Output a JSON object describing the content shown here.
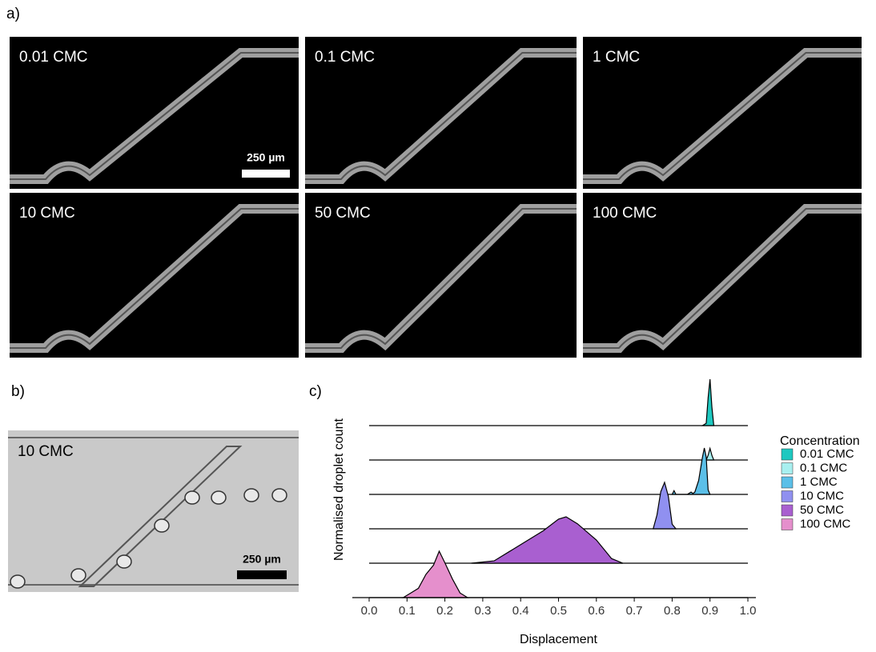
{
  "panel_labels": [
    "a)",
    "b)",
    "c)"
  ],
  "panel_a": {
    "images": [
      {
        "label": "0.01 CMC"
      },
      {
        "label": "0.1 CMC"
      },
      {
        "label": "1 CMC"
      },
      {
        "label": "10 CMC"
      },
      {
        "label": "50 CMC"
      },
      {
        "label": "100 CMC"
      }
    ],
    "scale_bar": "250 µm"
  },
  "panel_b": {
    "label": "10 CMC",
    "scale_bar": "250 µm"
  },
  "chart_data": {
    "type": "ridgeline",
    "xlabel": "Displacement",
    "ylabel": "Normalised droplet count",
    "legend_title": "Concentration",
    "xlim": [
      0,
      1
    ],
    "xticks": [
      {
        "value": 0,
        "label": "0.0"
      },
      0.1,
      0.2,
      0.3,
      0.4,
      0.5,
      0.6,
      0.7,
      0.8,
      0.9,
      {
        "value": 1,
        "label": "1.0"
      }
    ],
    "series": [
      {
        "name": "0.01 CMC",
        "color": "#1ec8c0",
        "x": [
          0.88,
          0.89,
          0.895,
          0.9,
          0.905,
          0.91
        ],
        "values": [
          0,
          0.05,
          0.6,
          1,
          0.4,
          0
        ]
      },
      {
        "name": "0.1 CMC",
        "color": "#a8f0f0",
        "x": [
          0.89,
          0.895,
          0.9,
          0.905,
          0.91
        ],
        "values": [
          0,
          0.1,
          0.25,
          0.1,
          0
        ]
      },
      {
        "name": "1 CMC",
        "color": "#5bbfe8",
        "x": [
          0.8,
          0.805,
          0.81,
          0.84,
          0.85,
          0.855,
          0.86,
          0.87,
          0.88,
          0.885,
          0.89,
          0.895,
          0.9
        ],
        "values": [
          0,
          0.08,
          0,
          0,
          0.05,
          0.02,
          0.05,
          0.3,
          0.8,
          1,
          0.8,
          0.1,
          0
        ]
      },
      {
        "name": "10 CMC",
        "color": "#9090f0",
        "x": [
          0.75,
          0.76,
          0.77,
          0.78,
          0.79,
          0.8,
          0.81
        ],
        "values": [
          0,
          0.3,
          0.8,
          1,
          0.7,
          0.1,
          0
        ]
      },
      {
        "name": "50 CMC",
        "color": "#a95fd0",
        "x": [
          0.27,
          0.33,
          0.38,
          0.42,
          0.46,
          0.5,
          0.52,
          0.55,
          0.6,
          0.64,
          0.67
        ],
        "values": [
          0,
          0.05,
          0.3,
          0.5,
          0.7,
          0.95,
          1,
          0.85,
          0.5,
          0.1,
          0
        ]
      },
      {
        "name": "100 CMC",
        "color": "#e58fcc",
        "x": [
          0.09,
          0.11,
          0.13,
          0.15,
          0.17,
          0.185,
          0.2,
          0.22,
          0.24,
          0.26
        ],
        "values": [
          0,
          0.1,
          0.2,
          0.5,
          0.7,
          1,
          0.75,
          0.4,
          0.1,
          0
        ]
      }
    ]
  }
}
